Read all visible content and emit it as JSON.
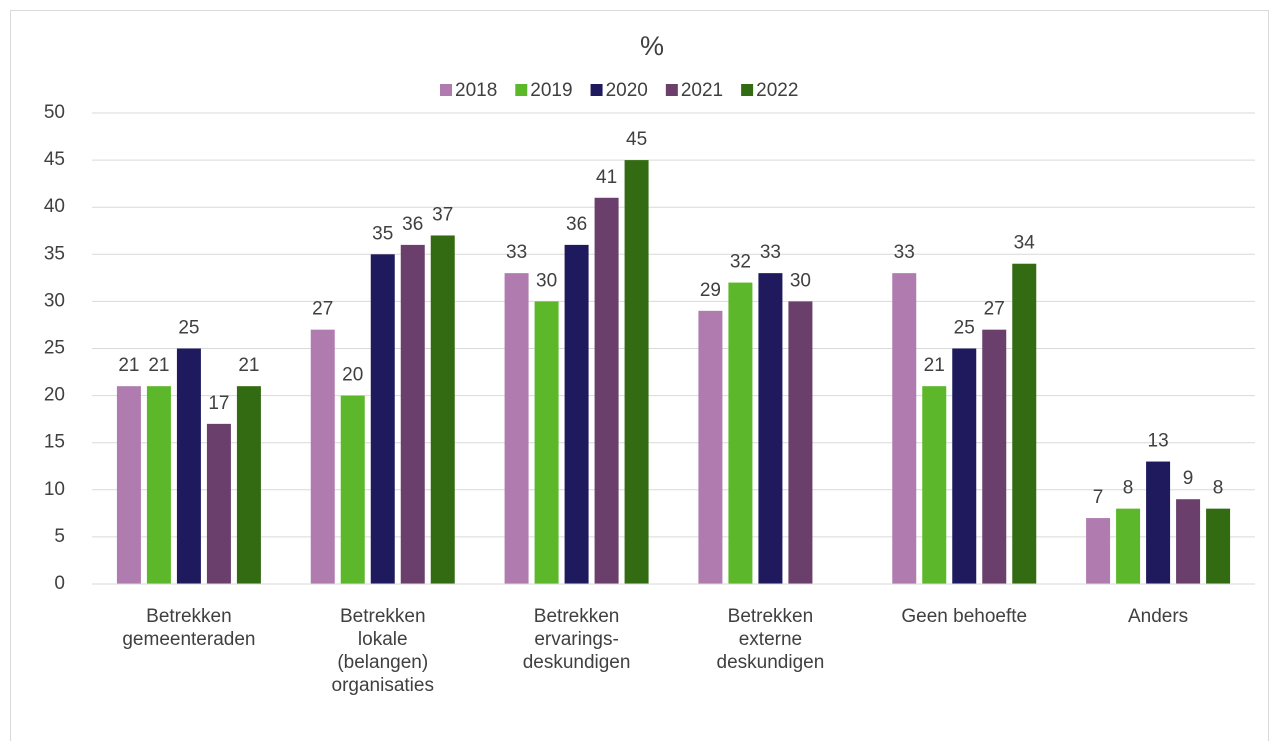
{
  "chart_data": {
    "type": "bar",
    "title": "%",
    "categories": [
      [
        "Betrekken",
        "gemeenteraden"
      ],
      [
        "Betrekken",
        "lokale",
        "(belangen)",
        "organisaties"
      ],
      [
        "Betrekken",
        "ervarings-",
        "deskundigen"
      ],
      [
        "Betrekken",
        "externe",
        "deskundigen"
      ],
      [
        "Geen behoefte"
      ],
      [
        "Anders"
      ]
    ],
    "series": [
      {
        "name": "2018",
        "color": "#b07cb0",
        "values": [
          21,
          27,
          33,
          29,
          33,
          7
        ]
      },
      {
        "name": "2019",
        "color": "#5cb82a",
        "values": [
          21,
          20,
          30,
          32,
          21,
          8
        ]
      },
      {
        "name": "2020",
        "color": "#1f1a5e",
        "values": [
          25,
          35,
          36,
          33,
          25,
          13
        ]
      },
      {
        "name": "2021",
        "color": "#6b3f6b",
        "values": [
          17,
          36,
          41,
          30,
          27,
          9
        ]
      },
      {
        "name": "2022",
        "color": "#336b12",
        "values": [
          21,
          37,
          45,
          null,
          34,
          8
        ]
      }
    ],
    "ylim": [
      0,
      50
    ],
    "yticks": [
      0,
      5,
      10,
      15,
      20,
      25,
      30,
      35,
      40,
      45,
      50
    ],
    "grid": true,
    "legend": "top"
  }
}
